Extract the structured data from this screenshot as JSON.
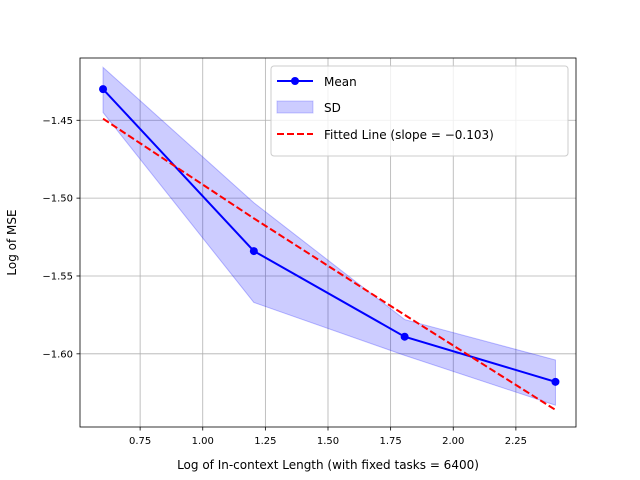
{
  "chart_data": {
    "type": "line",
    "title": "",
    "xlabel": "Log of In-context Length (with fixed tasks = 6400)",
    "ylabel": "Log of MSE",
    "xlim": [
      0.51,
      2.49
    ],
    "ylim": [
      -1.647,
      -1.41
    ],
    "x_ticks": [
      0.75,
      1.0,
      1.25,
      1.5,
      1.75,
      2.0,
      2.25
    ],
    "x_tick_labels": [
      "0.75",
      "1.00",
      "1.25",
      "1.50",
      "1.75",
      "2.00",
      "2.25"
    ],
    "y_ticks": [
      -1.45,
      -1.5,
      -1.55,
      -1.6
    ],
    "y_tick_labels": [
      "−1.45",
      "−1.50",
      "−1.55",
      "−1.60"
    ],
    "grid": true,
    "legend_position": "upper right",
    "series": [
      {
        "name": "Mean",
        "kind": "line-markers",
        "color": "#0000ff",
        "x": [
          0.602,
          1.204,
          1.806,
          2.408
        ],
        "y": [
          -1.43,
          -1.534,
          -1.589,
          -1.618
        ]
      },
      {
        "name": "SD",
        "kind": "band",
        "color": "#0000ff",
        "x": [
          0.602,
          1.204,
          1.806,
          2.408
        ],
        "lower": [
          -1.445,
          -1.567,
          -1.601,
          -1.633
        ],
        "upper": [
          -1.416,
          -1.503,
          -1.578,
          -1.604
        ]
      },
      {
        "name": "Fitted Line (slope = −0.103)",
        "kind": "dashed-line",
        "color": "#ff0000",
        "x": [
          0.602,
          1.204,
          1.806,
          2.408
        ],
        "y": [
          -1.449,
          -1.513,
          -1.575,
          -1.636
        ]
      }
    ]
  }
}
